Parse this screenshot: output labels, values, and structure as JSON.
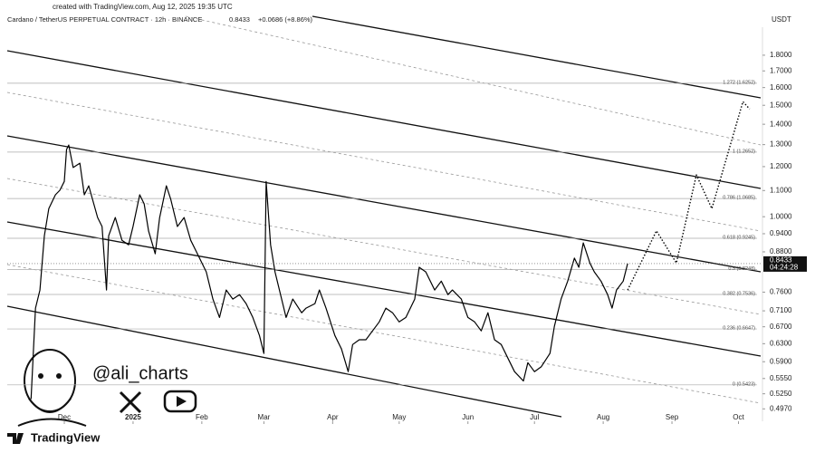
{
  "header": {
    "created": "created with TradingView.com, Aug 12, 2025 19:35 UTC",
    "brand": "TradingView",
    "handle": "@ali_charts"
  },
  "chart_data": {
    "type": "line",
    "title": "Cardano / TetherUS PERPETUAL CONTRACT · 12h · BINANCE",
    "last": "0.8433",
    "change": "+0.0686 (+8.86%)",
    "currency": "USDT",
    "log_scale": true,
    "grid": false,
    "xlim": [
      -60,
      283
    ],
    "ylim": [
      0.475,
      2.06
    ],
    "xticks": [
      {
        "value": -31,
        "label": "Dec"
      },
      {
        "value": 0,
        "label": "2025"
      },
      {
        "value": 31,
        "label": "Feb"
      },
      {
        "value": 59,
        "label": "Mar"
      },
      {
        "value": 90,
        "label": "Apr"
      },
      {
        "value": 120,
        "label": "May"
      },
      {
        "value": 151,
        "label": "Jun"
      },
      {
        "value": 181,
        "label": "Jul"
      },
      {
        "value": 212,
        "label": "Aug"
      },
      {
        "value": 243,
        "label": "Sep"
      },
      {
        "value": 273,
        "label": "Oct"
      }
    ],
    "yticks": [
      {
        "value": 1.8,
        "label": "1.8000"
      },
      {
        "value": 1.7,
        "label": "1.7000"
      },
      {
        "value": 1.6,
        "label": "1.6000"
      },
      {
        "value": 1.5,
        "label": "1.5000"
      },
      {
        "value": 1.4,
        "label": "1.4000"
      },
      {
        "value": 1.3,
        "label": "1.3000"
      },
      {
        "value": 1.2,
        "label": "1.2000"
      },
      {
        "value": 1.1,
        "label": "1.1000"
      },
      {
        "value": 1.0,
        "label": "1.0000"
      },
      {
        "value": 0.94,
        "label": "0.9400"
      },
      {
        "value": 0.88,
        "label": "0.8800"
      },
      {
        "value": 0.76,
        "label": "0.7600"
      },
      {
        "value": 0.71,
        "label": "0.7100"
      },
      {
        "value": 0.67,
        "label": "0.6700"
      },
      {
        "value": 0.63,
        "label": "0.6300"
      },
      {
        "value": 0.59,
        "label": "0.5900"
      },
      {
        "value": 0.555,
        "label": "0.5550"
      },
      {
        "value": 0.525,
        "label": "0.5250"
      },
      {
        "value": 0.497,
        "label": "0.4970"
      }
    ],
    "price_tag": {
      "value": 0.8433,
      "label": "0.8433",
      "countdown": "04:24:28"
    },
    "fib_levels": [
      {
        "label": "1.272 (1.6252)",
        "value": 1.6252
      },
      {
        "label": "1 (1.2652)",
        "value": 1.2652
      },
      {
        "label": "0.786 (1.0685)",
        "value": 1.0685
      },
      {
        "label": "0.618 (0.9245)",
        "value": 0.9245
      },
      {
        "label": "0.5 (0.8248)",
        "value": 0.8248
      },
      {
        "label": "0.382 (0.7536)",
        "value": 0.7536
      },
      {
        "label": "0.236 (0.6647)",
        "value": 0.6647
      },
      {
        "label": "0 (0.5423)",
        "value": 0.5423
      }
    ],
    "series": [
      {
        "color": "#000000",
        "style": "solid",
        "x": [
          -46,
          -44,
          -42,
          -40,
          -38,
          -35,
          -33,
          -31,
          -30,
          -29,
          -27,
          -24,
          -22,
          -20,
          -16,
          -14,
          -12,
          -11,
          -8,
          -5,
          -2,
          0,
          3,
          5,
          7,
          10,
          12,
          15,
          17,
          20,
          23,
          26,
          29,
          33,
          36,
          39,
          42,
          45,
          48,
          51,
          54,
          57,
          59,
          60,
          62,
          64,
          67,
          69,
          72,
          76,
          78,
          82,
          84,
          87,
          91,
          94,
          97,
          99,
          102,
          105,
          108,
          111,
          114,
          117,
          120,
          123,
          127,
          129,
          132,
          136,
          139,
          142,
          144,
          148,
          151,
          154,
          157,
          160,
          163,
          166,
          169,
          172,
          176,
          178,
          181,
          184,
          188,
          190,
          193,
          196,
          199,
          201,
          203,
          206,
          208,
          211,
          214,
          216,
          218,
          221,
          223
        ],
        "values": [
          0.515,
          0.717,
          0.766,
          0.933,
          1.03,
          1.083,
          1.101,
          1.137,
          1.277,
          1.298,
          1.196,
          1.215,
          1.083,
          1.119,
          0.997,
          0.965,
          0.766,
          0.933,
          0.997,
          0.918,
          0.903,
          0.965,
          1.083,
          1.048,
          0.949,
          0.874,
          0.997,
          1.119,
          1.065,
          0.965,
          0.997,
          0.918,
          0.874,
          0.818,
          0.741,
          0.693,
          0.766,
          0.741,
          0.753,
          0.729,
          0.693,
          0.649,
          0.608,
          1.137,
          0.903,
          0.818,
          0.741,
          0.693,
          0.741,
          0.705,
          0.717,
          0.729,
          0.766,
          0.717,
          0.649,
          0.618,
          0.569,
          0.628,
          0.639,
          0.639,
          0.66,
          0.682,
          0.717,
          0.705,
          0.682,
          0.693,
          0.741,
          0.832,
          0.818,
          0.766,
          0.791,
          0.753,
          0.766,
          0.741,
          0.693,
          0.682,
          0.66,
          0.705,
          0.639,
          0.628,
          0.598,
          0.569,
          0.55,
          0.588,
          0.569,
          0.579,
          0.608,
          0.671,
          0.741,
          0.791,
          0.86,
          0.832,
          0.909,
          0.845,
          0.818,
          0.791,
          0.753,
          0.717,
          0.766,
          0.791,
          0.8433
        ]
      },
      {
        "color": "#000000",
        "style": "dotted",
        "x": [
          223,
          236,
          245,
          254,
          261,
          275,
          278
        ],
        "values": [
          0.766,
          0.95,
          0.845,
          1.164,
          1.03,
          1.52,
          1.48
        ]
      }
    ]
  }
}
